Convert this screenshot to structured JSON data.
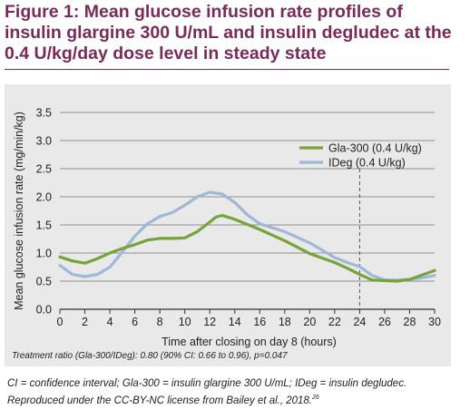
{
  "figure": {
    "title": "Figure 1: Mean glucose infusion rate profiles of insulin glargine 300 U/mL and insulin degludec at the 0.4 U/kg/day dose level in steady state",
    "footnote_line1": "CI = confidence interval; Gla-300 = insulin glargine 300 U/mL; IDeg = insulin degludec.",
    "footnote_line2": "Reproduced under the CC-BY-NC license from Bailey et al., 2018.",
    "footnote_ref": "26",
    "colors": {
      "title": "#7a2a59",
      "panel_background": "#e9e9ea"
    }
  },
  "chart_data": {
    "type": "line",
    "xlabel": "Time after closing on day 8 (hours)",
    "ylabel": "Mean glucose infusion rate (mg/min/kg)",
    "xlim": [
      0,
      30
    ],
    "ylim": [
      0,
      3.5
    ],
    "xticks": [
      0,
      2,
      4,
      6,
      8,
      10,
      12,
      14,
      16,
      18,
      20,
      22,
      24,
      26,
      28,
      30
    ],
    "yticks": [
      0.0,
      0.5,
      1.0,
      1.5,
      2.0,
      2.5,
      3.0,
      3.5
    ],
    "ytick_labels": [
      "0.0",
      "0.5",
      "1.0",
      "1.5",
      "2.0",
      "2.5",
      "3.0",
      "3.5"
    ],
    "grid": "horizontal",
    "legend_position": "top-right",
    "reference_line_x": 24,
    "annotation": "Treatment ratio (Gla-300/IDeg): 0.80 (90% CI: 0.66 to 0.96), p=0.047",
    "series": [
      {
        "name": "Gla-300 (0.4 U/kg)",
        "color": "#76a43b",
        "x": [
          0,
          1,
          2,
          3,
          4,
          5,
          6,
          7,
          8,
          9,
          10,
          11,
          12,
          12.5,
          13,
          14,
          16,
          18,
          20,
          22,
          23,
          24,
          25,
          26,
          27,
          28,
          29,
          30
        ],
        "y": [
          0.93,
          0.86,
          0.82,
          0.9,
          1.0,
          1.08,
          1.15,
          1.23,
          1.26,
          1.26,
          1.27,
          1.38,
          1.55,
          1.64,
          1.67,
          1.6,
          1.42,
          1.22,
          0.99,
          0.83,
          0.73,
          0.62,
          0.52,
          0.51,
          0.5,
          0.53,
          0.61,
          0.69
        ]
      },
      {
        "name": "IDeg (0.4 U/kg)",
        "color": "#9fb8d8",
        "x": [
          0,
          1,
          2,
          3,
          4,
          5,
          6,
          7,
          8,
          9,
          10,
          11,
          12,
          13,
          14,
          15,
          16,
          18,
          20,
          22,
          23,
          24,
          25,
          26,
          27,
          28,
          29,
          30
        ],
        "y": [
          0.78,
          0.62,
          0.58,
          0.62,
          0.75,
          1.02,
          1.3,
          1.52,
          1.65,
          1.72,
          1.85,
          2.0,
          2.08,
          2.05,
          1.9,
          1.68,
          1.52,
          1.38,
          1.18,
          0.92,
          0.83,
          0.76,
          0.6,
          0.52,
          0.52,
          0.53,
          0.56,
          0.6
        ]
      }
    ]
  }
}
